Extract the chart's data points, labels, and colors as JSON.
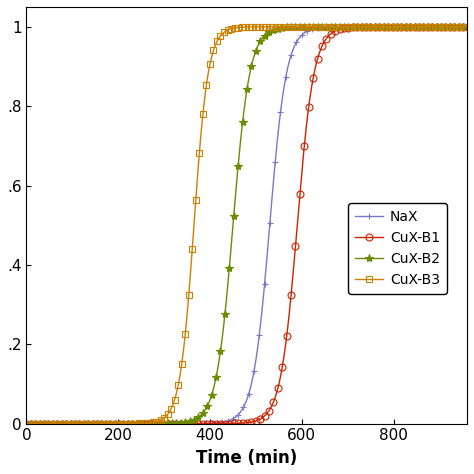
{
  "title": "",
  "xlabel": "Time (min)",
  "ylabel": "",
  "xlim": [
    0,
    960
  ],
  "ylim": [
    0,
    1.05
  ],
  "yticks": [
    0,
    0.2,
    0.4,
    0.6,
    0.8,
    1.0
  ],
  "ytick_labels": [
    "0",
    ".2",
    ".4",
    ".6",
    ".8",
    "1"
  ],
  "xticks": [
    0,
    200,
    400,
    600,
    800
  ],
  "series": [
    {
      "label": "NaX",
      "color": "#7878c8",
      "marker": "P",
      "marker_size": 4,
      "linestyle": "-",
      "breakthrough": 530,
      "steepness": 0.055,
      "marker_every": 12
    },
    {
      "label": "CuX-B1",
      "color": "#cc2200",
      "marker": "o",
      "marker_size": 5,
      "linestyle": "-",
      "breakthrough": 590,
      "steepness": 0.055,
      "marker_every": 10
    },
    {
      "label": "CuX-B2",
      "color": "#6a8c00",
      "marker": "*",
      "marker_size": 6,
      "linestyle": "-",
      "breakthrough": 450,
      "steepness": 0.055,
      "marker_every": 10
    },
    {
      "label": "CuX-B3",
      "color": "#cc8000",
      "marker": "s",
      "marker_size": 4,
      "linestyle": "-",
      "breakthrough": 365,
      "steepness": 0.065,
      "marker_every": 8
    }
  ],
  "legend_loc": "center right",
  "figsize": [
    4.74,
    4.74
  ],
  "dpi": 100
}
